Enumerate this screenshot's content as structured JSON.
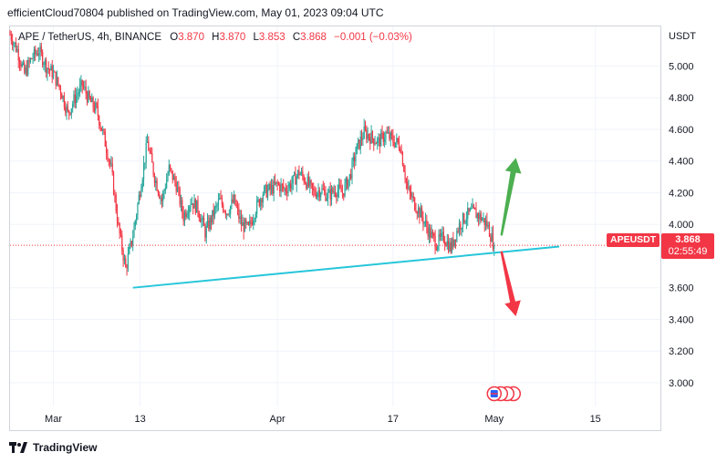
{
  "header": {
    "published_text": "efficientCloud70804 published on TradingView.com, May 01, 2023 09:04 UTC"
  },
  "legend": {
    "symbol": "APE / TetherUS, 4h, BINANCE",
    "open_label": "O",
    "open": "3.870",
    "high_label": "H",
    "high": "3.870",
    "low_label": "L",
    "low": "3.853",
    "close_label": "C",
    "close": "3.868",
    "change": "−0.001 (−0.03%)"
  },
  "price_axis": {
    "unit": "USDT"
  },
  "last_price": {
    "symbol": "APEUSDT",
    "value": "3.868",
    "countdown": "02:55:49"
  },
  "footer": {
    "brand": "TradingView"
  },
  "colors": {
    "up": "#26a69a",
    "down": "#f23645",
    "trendline": "#26c6da",
    "arrow_up": "#4caf50",
    "arrow_down": "#f23645"
  },
  "chart_data": {
    "type": "candlestick",
    "symbol": "APE / TetherUS",
    "timeframe": "4h",
    "exchange": "BINANCE",
    "y_ticks": [
      "5.000",
      "4.800",
      "4.600",
      "4.400",
      "4.200",
      "4.000",
      "3.600",
      "3.400",
      "3.200",
      "3.000"
    ],
    "y_tick_values": [
      5.0,
      4.8,
      4.6,
      4.4,
      4.2,
      4.0,
      3.6,
      3.4,
      3.2,
      3.0
    ],
    "ylim": [
      2.85,
      5.25
    ],
    "x_ticks": [
      "Mar",
      "13",
      "Apr",
      "17",
      "May",
      "15"
    ],
    "x_tick_dates": [
      "2023-03-01",
      "2023-03-13",
      "2023-04-01",
      "2023-04-17",
      "2023-05-01",
      "2023-05-15"
    ],
    "xlim": [
      "2023-02-23",
      "2023-05-24"
    ],
    "last_price": 3.868,
    "price_anchors": [
      [
        "2023-02-23",
        5.2
      ],
      [
        "2023-02-24",
        5.1
      ],
      [
        "2023-02-25",
        4.95
      ],
      [
        "2023-02-26",
        5.05
      ],
      [
        "2023-02-27",
        5.1
      ],
      [
        "2023-02-28",
        5.0
      ],
      [
        "2023-03-01",
        4.95
      ],
      [
        "2023-03-02",
        4.85
      ],
      [
        "2023-03-03",
        4.7
      ],
      [
        "2023-03-04",
        4.8
      ],
      [
        "2023-03-05",
        4.88
      ],
      [
        "2023-03-06",
        4.78
      ],
      [
        "2023-03-07",
        4.72
      ],
      [
        "2023-03-08",
        4.55
      ],
      [
        "2023-03-09",
        4.35
      ],
      [
        "2023-03-10",
        3.98
      ],
      [
        "2023-03-11",
        3.72
      ],
      [
        "2023-03-12",
        3.93
      ],
      [
        "2023-03-13",
        4.22
      ],
      [
        "2023-03-14",
        4.52
      ],
      [
        "2023-03-15",
        4.3
      ],
      [
        "2023-03-16",
        4.15
      ],
      [
        "2023-03-17",
        4.35
      ],
      [
        "2023-03-18",
        4.25
      ],
      [
        "2023-03-19",
        4.05
      ],
      [
        "2023-03-20",
        4.15
      ],
      [
        "2023-03-21",
        4.1
      ],
      [
        "2023-03-22",
        3.95
      ],
      [
        "2023-03-23",
        4.05
      ],
      [
        "2023-03-24",
        4.15
      ],
      [
        "2023-03-25",
        4.08
      ],
      [
        "2023-03-26",
        4.15
      ],
      [
        "2023-03-27",
        4.0
      ],
      [
        "2023-03-28",
        3.97
      ],
      [
        "2023-03-29",
        4.1
      ],
      [
        "2023-03-30",
        4.2
      ],
      [
        "2023-03-31",
        4.22
      ],
      [
        "2023-04-01",
        4.25
      ],
      [
        "2023-04-02",
        4.22
      ],
      [
        "2023-04-03",
        4.26
      ],
      [
        "2023-04-04",
        4.33
      ],
      [
        "2023-04-05",
        4.27
      ],
      [
        "2023-04-06",
        4.2
      ],
      [
        "2023-04-07",
        4.22
      ],
      [
        "2023-04-08",
        4.18
      ],
      [
        "2023-04-09",
        4.22
      ],
      [
        "2023-04-10",
        4.2
      ],
      [
        "2023-04-11",
        4.3
      ],
      [
        "2023-04-12",
        4.48
      ],
      [
        "2023-04-13",
        4.58
      ],
      [
        "2023-04-14",
        4.55
      ],
      [
        "2023-04-15",
        4.52
      ],
      [
        "2023-04-16",
        4.57
      ],
      [
        "2023-04-17",
        4.53
      ],
      [
        "2023-04-18",
        4.5
      ],
      [
        "2023-04-19",
        4.22
      ],
      [
        "2023-04-20",
        4.13
      ],
      [
        "2023-04-21",
        4.05
      ],
      [
        "2023-04-22",
        3.95
      ],
      [
        "2023-04-23",
        3.88
      ],
      [
        "2023-04-24",
        3.92
      ],
      [
        "2023-04-25",
        3.85
      ],
      [
        "2023-04-26",
        3.98
      ],
      [
        "2023-04-27",
        4.05
      ],
      [
        "2023-04-28",
        4.08
      ],
      [
        "2023-04-29",
        4.05
      ],
      [
        "2023-04-30",
        4.0
      ],
      [
        "2023-05-01",
        3.868
      ]
    ],
    "trendline": {
      "start": [
        "2023-03-12",
        3.6
      ],
      "end": [
        "2023-05-10",
        3.86
      ]
    },
    "arrows": [
      {
        "direction": "up",
        "from": [
          "2023-05-02",
          3.93
        ],
        "to": [
          "2023-05-04",
          4.42
        ]
      },
      {
        "direction": "down",
        "from": [
          "2023-05-02",
          3.83
        ],
        "to": [
          "2023-05-04",
          3.42
        ]
      }
    ]
  }
}
